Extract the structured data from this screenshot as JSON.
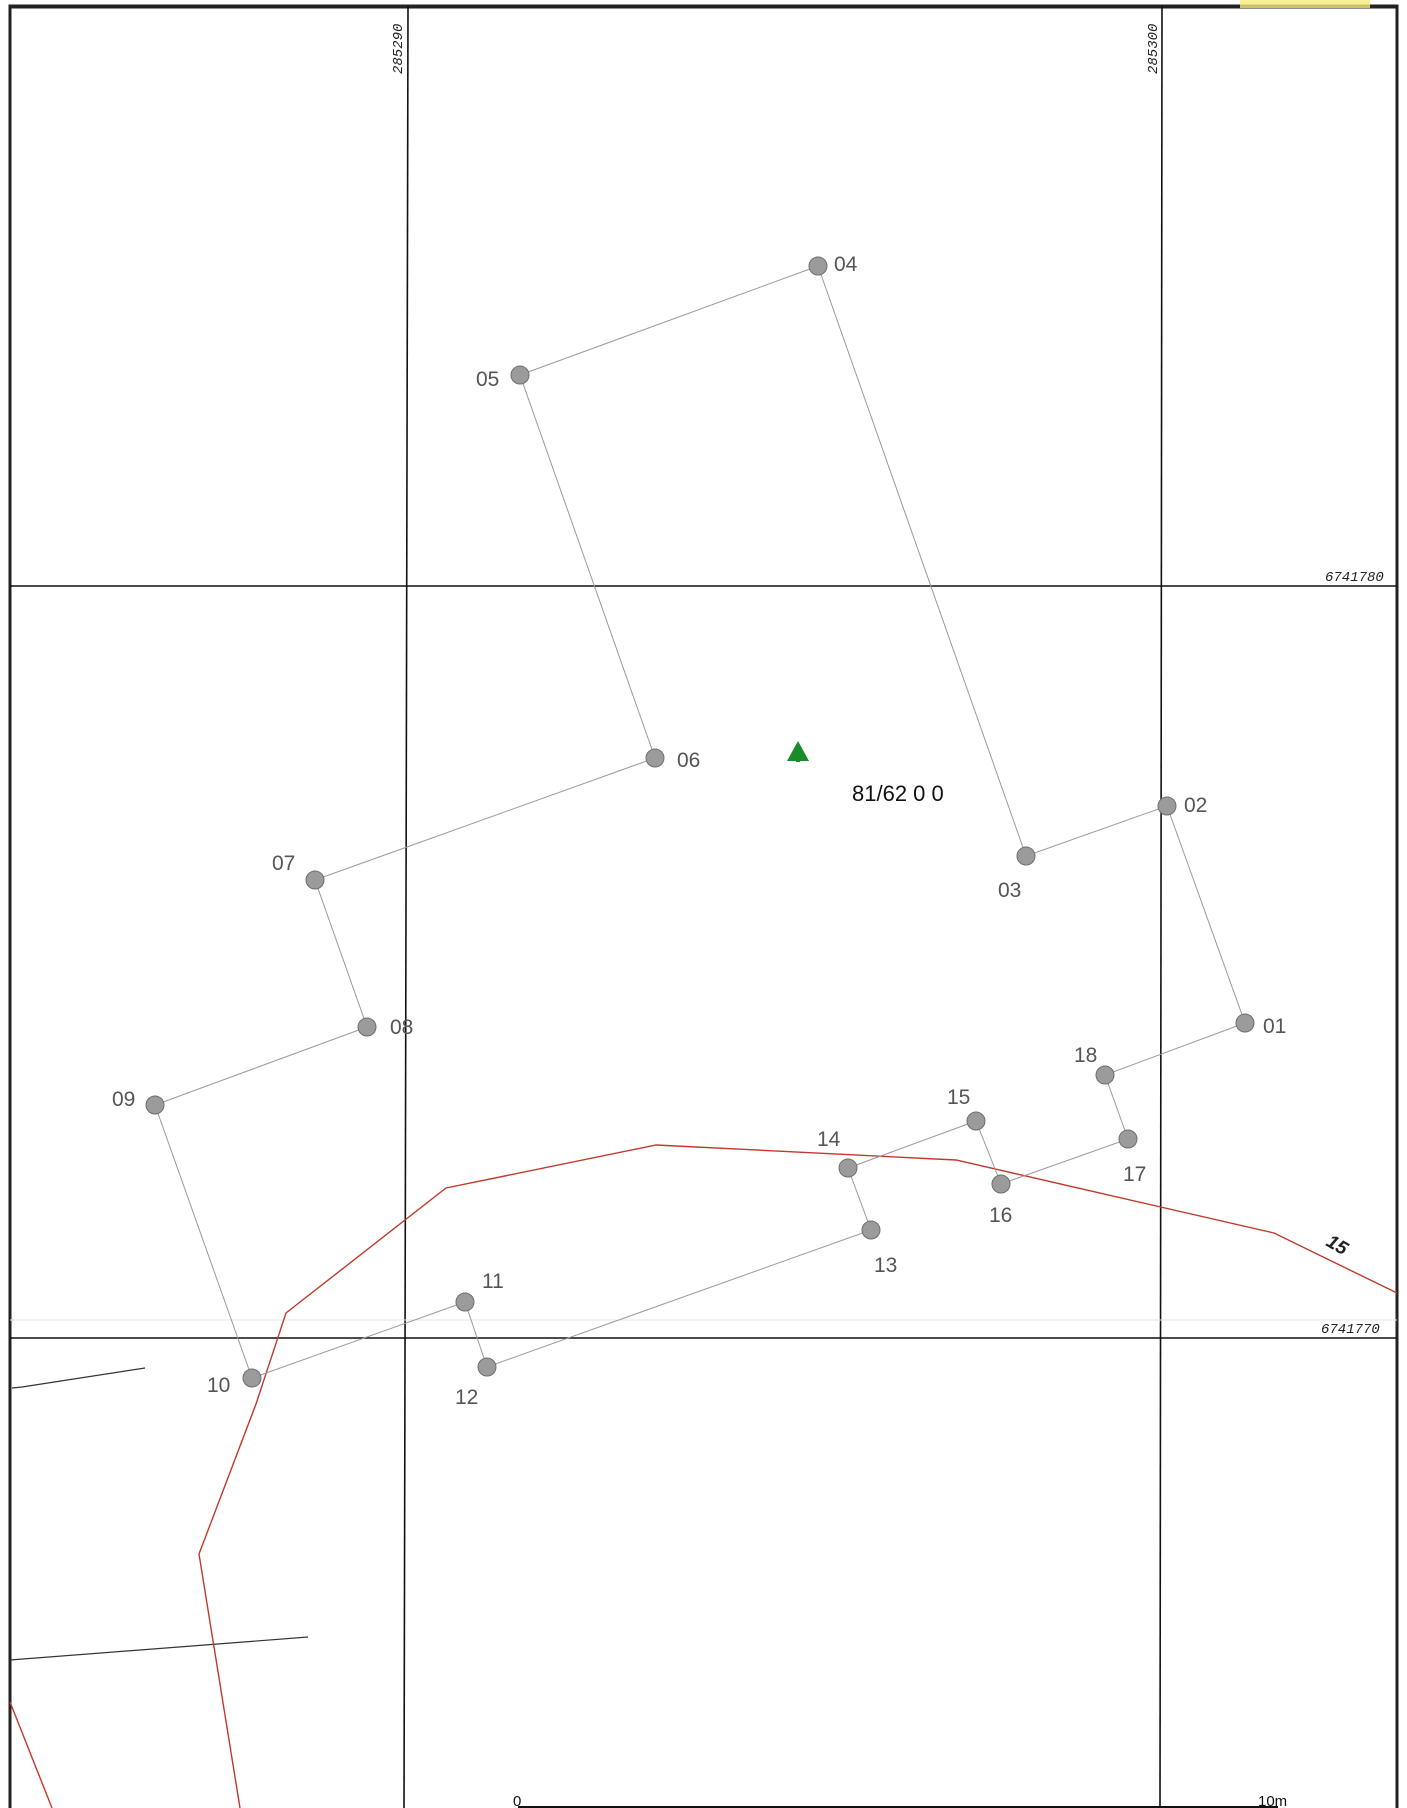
{
  "map": {
    "grid_labels": {
      "easting_1": "285290",
      "easting_2": "285300",
      "northing_1": "6741780",
      "northing_2": "6741770"
    },
    "parcel_label": "81/62 0 0",
    "contour_label": "15",
    "scale_bar": {
      "start_label": "0",
      "end_label": "10m"
    },
    "colors": {
      "grid_line": "#111111",
      "boundary_line": "#9a9a9a",
      "point_fill": "#9b9b9b",
      "contour": "#c0392b",
      "marker": "#1a8a2a",
      "frame": "#222222"
    },
    "points": [
      {
        "id": "01",
        "label": "01"
      },
      {
        "id": "02",
        "label": "02"
      },
      {
        "id": "03",
        "label": "03"
      },
      {
        "id": "04",
        "label": "04"
      },
      {
        "id": "05",
        "label": "05"
      },
      {
        "id": "06",
        "label": "06"
      },
      {
        "id": "07",
        "label": "07"
      },
      {
        "id": "08",
        "label": "08"
      },
      {
        "id": "09",
        "label": "09"
      },
      {
        "id": "10",
        "label": "10"
      },
      {
        "id": "11",
        "label": "11"
      },
      {
        "id": "12",
        "label": "12"
      },
      {
        "id": "13",
        "label": "13"
      },
      {
        "id": "14",
        "label": "14"
      },
      {
        "id": "15",
        "label": "15"
      },
      {
        "id": "16",
        "label": "16"
      },
      {
        "id": "17",
        "label": "17"
      },
      {
        "id": "18",
        "label": "18"
      }
    ]
  }
}
